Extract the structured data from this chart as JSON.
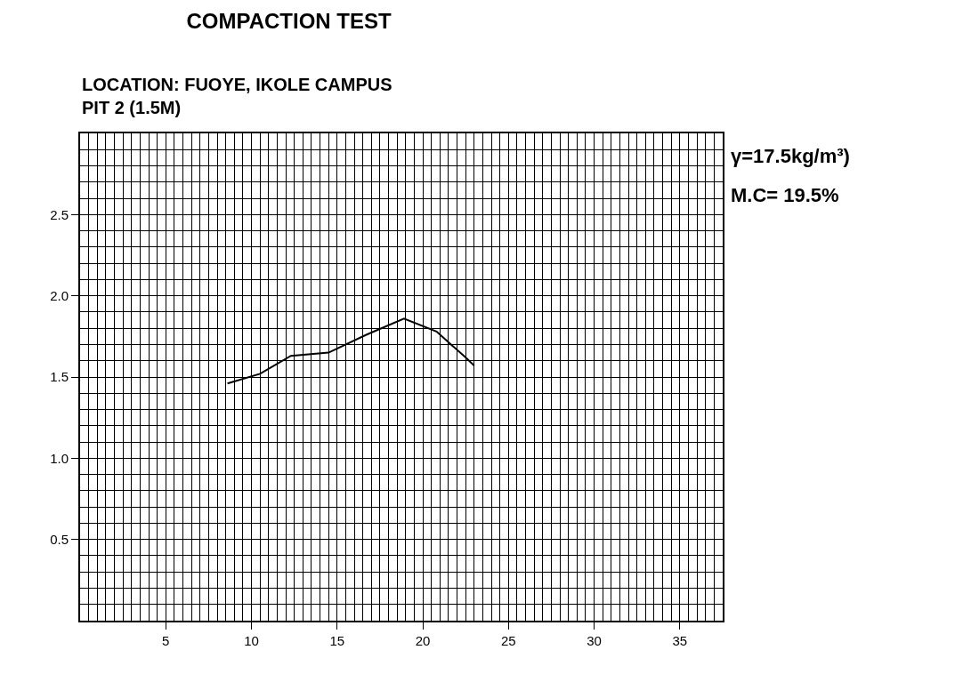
{
  "chart_data": {
    "type": "line",
    "title": "COMPACTION TEST",
    "subtitle": "LOCATION: FUOYE, IKOLE CAMPUS\nPIT 2 (1.5M)",
    "annotations": [
      "γ=17.5kg/m³)",
      "M.C= 19.5%"
    ],
    "x": [
      8.6,
      10.5,
      12.3,
      14.5,
      16.7,
      18.9,
      20.8,
      22.5,
      23.0
    ],
    "series": [
      {
        "color": "#000000",
        "values": [
          1.46,
          1.52,
          1.63,
          1.65,
          1.76,
          1.86,
          1.78,
          1.62,
          1.57
        ]
      }
    ],
    "xlim": [
      0,
      37.5
    ],
    "xticks": [
      5,
      10,
      15,
      20,
      25,
      30,
      35
    ],
    "ylim": [
      0,
      3
    ],
    "yticks": [
      0.5,
      {
        "value": 1,
        "label": "1.0"
      },
      1.5,
      {
        "value": 2,
        "label": "2.0"
      },
      2.5
    ],
    "grid": true,
    "marker": "none",
    "line_style": "solid"
  }
}
